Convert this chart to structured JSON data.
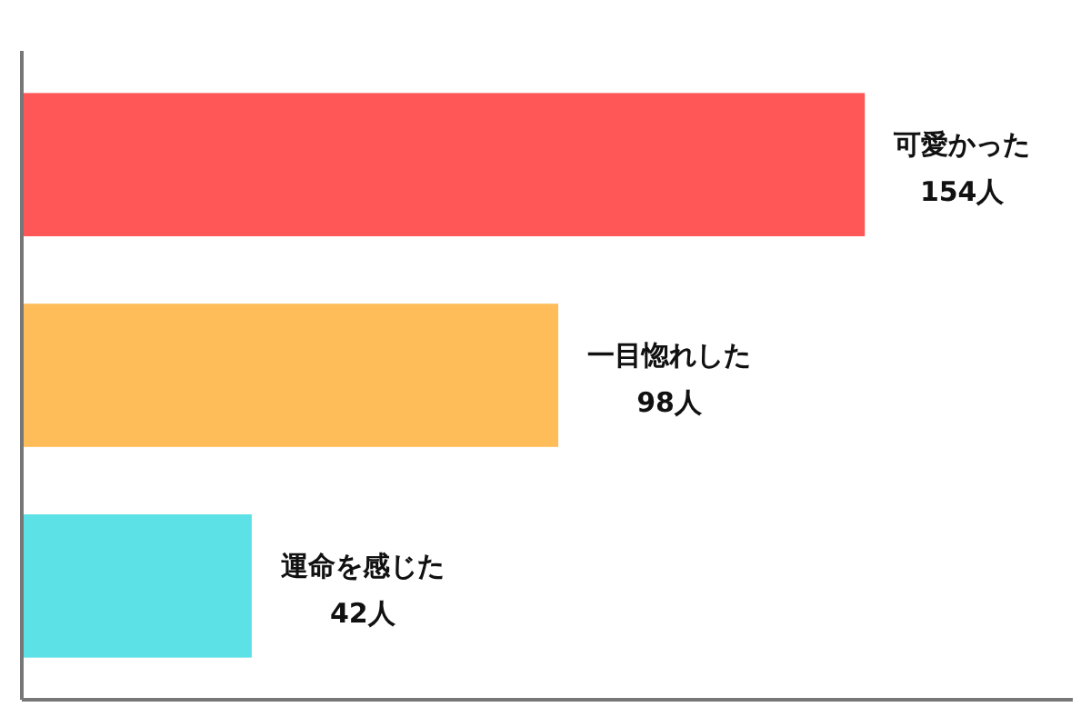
{
  "chart_data": {
    "type": "bar",
    "orientation": "horizontal",
    "categories": [
      "可愛かった",
      "一目惚れした",
      "運命を感じた"
    ],
    "values": [
      154,
      98,
      42
    ],
    "colors": [
      "#ff5757",
      "#ffbd59",
      "#5ce1e6"
    ],
    "value_labels": [
      "154人",
      "98人",
      "42人"
    ],
    "xlim": [
      0,
      192
    ]
  }
}
